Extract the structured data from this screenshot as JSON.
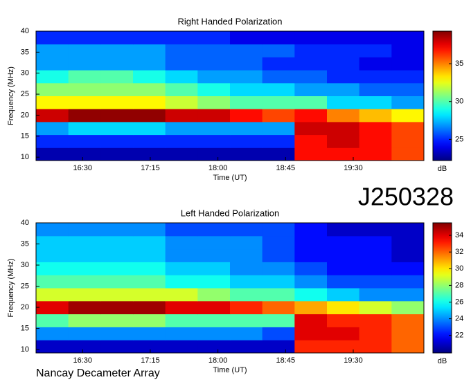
{
  "chart_data": [
    {
      "type": "heatmap",
      "title": "Right Handed Polarization",
      "x_label": "Time (UT)",
      "y_label": "Frequency (MHz)",
      "xlim": [
        959,
        1217
      ],
      "xticks": [
        {
          "value": 990,
          "label": "16:30"
        },
        {
          "value": 1035,
          "label": "17:15"
        },
        {
          "value": 1080,
          "label": "18:00"
        },
        {
          "value": 1125,
          "label": "18:45"
        },
        {
          "value": 1170,
          "label": "19:30"
        }
      ],
      "ylim": [
        9.2,
        40
      ],
      "yticks": [
        10,
        15,
        20,
        25,
        30,
        35,
        40
      ],
      "x": [
        970,
        991,
        1013,
        1034,
        1056,
        1077,
        1099,
        1120,
        1142,
        1163,
        1185,
        1206
      ],
      "y": [
        10.7,
        13.8,
        16.9,
        20,
        23.1,
        26.2,
        29.2,
        32.3,
        35.4,
        38.5
      ],
      "z": [
        [
          23,
          23,
          23,
          23,
          23,
          23,
          23,
          23,
          37,
          37,
          37,
          36
        ],
        [
          25,
          25,
          25,
          25,
          25,
          25,
          25,
          25,
          37,
          38,
          37,
          36
        ],
        [
          27,
          28,
          28,
          28,
          27,
          27,
          27,
          27,
          38,
          38,
          37,
          36
        ],
        [
          38,
          39,
          39,
          39,
          38,
          38,
          37,
          36,
          37,
          35,
          34,
          33
        ],
        [
          33,
          33,
          33,
          33,
          32,
          31,
          30,
          30,
          30,
          28,
          28,
          27
        ],
        [
          31,
          31,
          31,
          31,
          30,
          29,
          28,
          28,
          27,
          27,
          26,
          26
        ],
        [
          29,
          30,
          30,
          29,
          28,
          27,
          27,
          26,
          26,
          25,
          25,
          25
        ],
        [
          27,
          27,
          27,
          27,
          26,
          26,
          26,
          25,
          25,
          25,
          24,
          24
        ],
        [
          27,
          27,
          27,
          27,
          26,
          26,
          26,
          26,
          25,
          25,
          25,
          24
        ],
        [
          25,
          25,
          25,
          25,
          25,
          25,
          24,
          24,
          24,
          24,
          24,
          24
        ]
      ],
      "colormap": "jet",
      "clim": [
        22.2,
        39.3
      ],
      "cticks": [
        25,
        30,
        35
      ],
      "colorbar_label": "dB"
    },
    {
      "type": "heatmap",
      "title": "Left Handed Polarization",
      "x_label": "Time (UT)",
      "y_label": "Frequency (MHz)",
      "xlim": [
        959,
        1217
      ],
      "xticks": [
        {
          "value": 990,
          "label": "16:30"
        },
        {
          "value": 1035,
          "label": "17:15"
        },
        {
          "value": 1080,
          "label": "18:00"
        },
        {
          "value": 1125,
          "label": "18:45"
        },
        {
          "value": 1170,
          "label": "19:30"
        }
      ],
      "ylim": [
        9.2,
        40
      ],
      "yticks": [
        10,
        15,
        20,
        25,
        30,
        35,
        40
      ],
      "x": [
        970,
        991,
        1013,
        1034,
        1056,
        1077,
        1099,
        1120,
        1142,
        1163,
        1185,
        1206
      ],
      "y": [
        10.7,
        13.8,
        16.9,
        20,
        23.1,
        26.2,
        29.2,
        32.3,
        35.4,
        38.5
      ],
      "z": [
        [
          21,
          21,
          21,
          21,
          21,
          21,
          21,
          21,
          33,
          33,
          33,
          32
        ],
        [
          24,
          24,
          24,
          24,
          24,
          24,
          24,
          23,
          34,
          34,
          33,
          32
        ],
        [
          27,
          28,
          28,
          28,
          27,
          27,
          27,
          27,
          34,
          33,
          33,
          32
        ],
        [
          34,
          35,
          35,
          35,
          34,
          34,
          33,
          32,
          31,
          30,
          29,
          28
        ],
        [
          29,
          29,
          29,
          29,
          29,
          28,
          27,
          27,
          26,
          25,
          24,
          24
        ],
        [
          27,
          27,
          27,
          27,
          26,
          26,
          25,
          25,
          24,
          23,
          23,
          23
        ],
        [
          26,
          26,
          26,
          26,
          25,
          25,
          24,
          24,
          23,
          22,
          22,
          22
        ],
        [
          25,
          25,
          25,
          25,
          24,
          24,
          24,
          23,
          22,
          22,
          22,
          21
        ],
        [
          25,
          25,
          25,
          25,
          24,
          24,
          24,
          23,
          22,
          22,
          22,
          21
        ],
        [
          24,
          24,
          24,
          24,
          23,
          23,
          23,
          23,
          22,
          21,
          21,
          21
        ]
      ],
      "colormap": "jet",
      "clim": [
        19.9,
        35.5
      ],
      "cticks": [
        22,
        24,
        26,
        28,
        30,
        32,
        34
      ],
      "colorbar_label": "dB"
    }
  ],
  "annotations": {
    "id": "J250328",
    "source": "Nancay Decameter Array"
  }
}
